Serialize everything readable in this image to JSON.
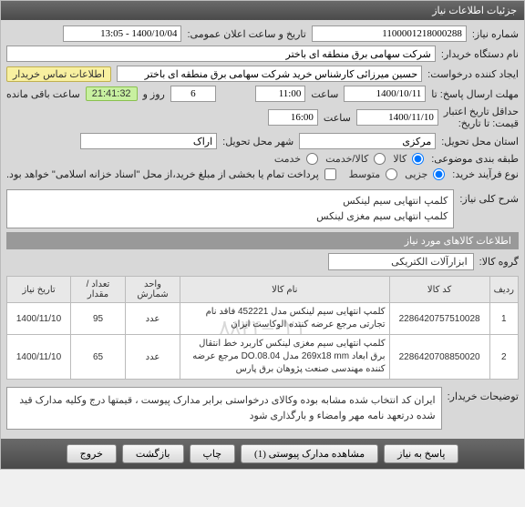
{
  "header": {
    "title": "جزئیات اطلاعات نیاز"
  },
  "form": {
    "need_no_label": "شماره نیاز:",
    "need_no": "1100001218000288",
    "announce_label": "تاریخ و ساعت اعلان عمومی:",
    "announce_value": "1400/10/04 - 13:05",
    "buyer_org_label": "نام دستگاه خریدار:",
    "buyer_org": "شرکت سهامی برق منطقه ای باختر",
    "requester_label": "ایجاد کننده درخواست:",
    "requester": "حسین میرزائی کارشناس خرید شرکت سهامی برق منطقه ای باختر",
    "buyer_contact": "اطلاعات تماس خریدار",
    "deadline_label": "مهلت ارسال پاسخ: تا",
    "deadline_date": "1400/10/11",
    "time_label": "ساعت",
    "deadline_time": "11:00",
    "days_label": "",
    "days_value": "6",
    "days_suffix": "روز و",
    "countdown": "21:41:32",
    "remaining": "ساعت باقی مانده",
    "credit_label": "حداقل تاریخ اعتبار",
    "price_until_label": "قیمت: تا تاریخ:",
    "credit_date": "1400/11/10",
    "credit_time": "16:00",
    "province_label": "استان محل تحویل:",
    "province": "مرکزی",
    "city_label": "شهر محل تحویل:",
    "city": "اراک",
    "topic_class_label": "طبقه بندی موضوعی:",
    "r_goods": "کالا",
    "r_service": "کالا/خدمت",
    "r_serviceonly": "خدمت",
    "purchase_type_label": "نوع فرآیند خرید:",
    "r_small": "جزیی",
    "r_medium": "متوسط",
    "purchase_note": "پرداخت تمام یا بخشی از مبلغ خرید،از محل \"اسناد خزانه اسلامی\" خواهد بود."
  },
  "desc": {
    "label": "شرح کلی نیاز:",
    "line1": "کلمپ انتهایی سیم لینکس",
    "line2": "کلمپ انتهایی سیم مغزی لینکس"
  },
  "items_section": "اطلاعات کالاهای مورد نیاز",
  "group": {
    "label": "گروه کالا:",
    "value": "ابزارآلات الکتریکی"
  },
  "table": {
    "headers": [
      "ردیف",
      "کد کالا",
      "نام کالا",
      "واحد شمارش",
      "تعداد / مقدار",
      "تاریخ نیاز"
    ],
    "rows": [
      {
        "idx": "1",
        "code": "2286420757510028",
        "name": "کلمپ انتهایی سیم لینکس مدل 452221 فاقد نام تجارتی مرجع عرضه کننده الوکاست ایران",
        "unit": "عدد",
        "qty": "95",
        "date": "1400/11/10"
      },
      {
        "idx": "2",
        "code": "2286420708850020",
        "name": "کلمپ انتهایی سیم مغزی لینکس کاربرد خط انتقال برق ابعاد 269x18 mm مدل DO.08.04 مرجع عرضه کننده مهندسی صنعت پژوهان برق پارس",
        "unit": "عدد",
        "qty": "65",
        "date": "1400/11/10"
      }
    ],
    "watermark": "۰۲۱–۸۸۳۴"
  },
  "buyer_notes": {
    "label": "توضیحات خریدار:",
    "text": "ایران کد انتخاب شده مشابه بوده وکالای درخواستی برابر مدارک  پیوست  ، قیمتها درج وکلیه مدارک قید شده درتعهد نامه مهر وامضاء و بارگذاری شود"
  },
  "footer": {
    "respond": "پاسخ به نیاز",
    "attach": "مشاهده مدارک پیوستی (1)",
    "print": "چاپ",
    "back": "بازگشت",
    "exit": "خروج"
  }
}
